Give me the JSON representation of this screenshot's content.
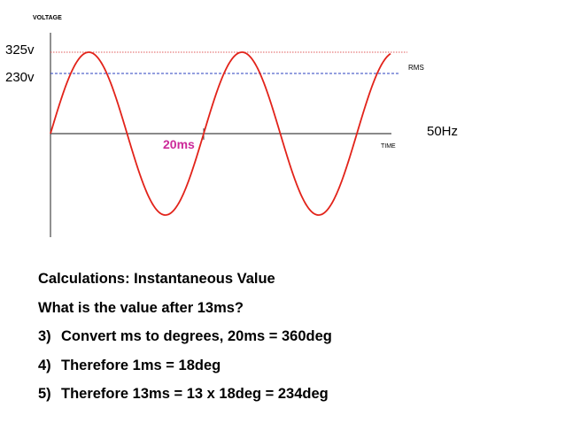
{
  "diagram": {
    "y_axis_title": "VOLTAGE",
    "x_axis_title": "TIME",
    "peak_label": "325v",
    "rms_label": "230v",
    "rms_tag": "RMS",
    "period_label": "20ms",
    "frequency_label": "50Hz",
    "colors": {
      "wave": "#e2231a",
      "peak_line": "#e05a5a",
      "rms_line": "#2a3fbf",
      "period_text": "#cc2a99"
    }
  },
  "notes": {
    "heading": "Calculations: Instantaneous Value",
    "question": "What is the value after 13ms?",
    "steps": [
      {
        "number": "3)",
        "text": "Convert ms to degrees, 20ms = 360deg"
      },
      {
        "number": "4)",
        "text": "Therefore 1ms = 18deg"
      },
      {
        "number": "5)",
        "text": "Therefore 13ms = 13 x 18deg = 234deg"
      }
    ]
  }
}
